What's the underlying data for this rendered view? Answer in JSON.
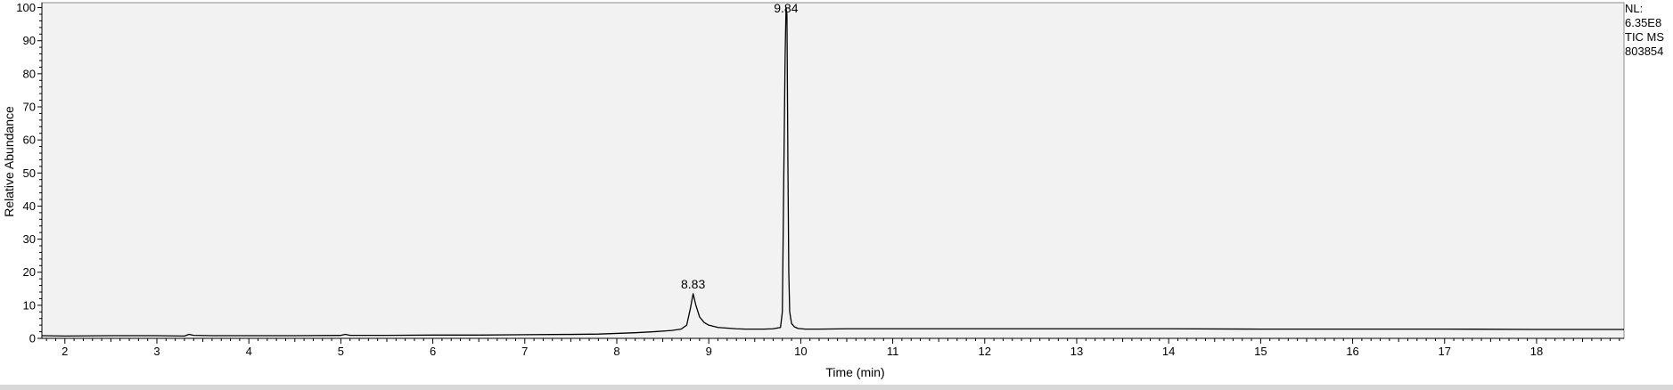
{
  "info": {
    "nl_label": "NL:",
    "nl_value": "6.35E8",
    "scan_filter": "TIC  MS",
    "file_id": "803854"
  },
  "chart_data": {
    "type": "line",
    "title": "",
    "xlabel": "Time (min)",
    "ylabel": "Relative Abundance",
    "xlim": [
      1.75,
      18.95
    ],
    "ylim": [
      0,
      101.5
    ],
    "x_ticks": [
      2,
      3,
      4,
      5,
      6,
      7,
      8,
      9,
      10,
      11,
      12,
      13,
      14,
      15,
      16,
      17,
      18
    ],
    "y_ticks": [
      0,
      10,
      20,
      30,
      40,
      50,
      60,
      70,
      80,
      90,
      100
    ],
    "grid": false,
    "plot_background": "#f2f2f2",
    "line_color": "#000000",
    "peak_labels": [
      {
        "x": 8.83,
        "y": 13.5,
        "text": "8.83"
      },
      {
        "x": 9.84,
        "y": 100,
        "text": "9.84"
      }
    ],
    "series": [
      {
        "x": [
          1.75,
          2.0,
          2.5,
          3.0,
          3.3,
          3.35,
          3.4,
          3.6,
          4.0,
          4.5,
          5.0,
          5.05,
          5.1,
          5.5,
          6.0,
          6.5,
          7.0,
          7.5,
          7.8,
          8.0,
          8.2,
          8.4,
          8.6,
          8.7,
          8.76,
          8.8,
          8.83,
          8.86,
          8.9,
          8.95,
          9.0,
          9.1,
          9.2,
          9.3,
          9.4,
          9.5,
          9.6,
          9.7,
          9.78,
          9.8,
          9.82,
          9.83,
          9.84,
          9.85,
          9.86,
          9.87,
          9.88,
          9.9,
          9.93,
          9.97,
          10.05,
          10.2,
          10.5,
          11.0,
          12.0,
          13.0,
          14.0,
          15.0,
          16.0,
          17.0,
          18.0,
          18.95
        ],
        "y": [
          0.8,
          0.7,
          0.8,
          0.8,
          0.7,
          1.2,
          0.9,
          0.8,
          0.8,
          0.8,
          0.9,
          1.2,
          0.9,
          0.9,
          1.0,
          1.0,
          1.1,
          1.2,
          1.3,
          1.5,
          1.7,
          2.0,
          2.4,
          2.8,
          4.0,
          9.0,
          13.5,
          10.0,
          6.5,
          4.8,
          4.0,
          3.3,
          3.1,
          2.9,
          2.8,
          2.8,
          2.8,
          2.9,
          3.3,
          8.0,
          60.0,
          85.0,
          100.0,
          98.0,
          55.0,
          20.0,
          8.0,
          4.5,
          3.5,
          3.0,
          2.8,
          2.8,
          2.9,
          2.9,
          2.9,
          2.9,
          2.9,
          2.8,
          2.8,
          2.8,
          2.7,
          2.7
        ]
      }
    ]
  }
}
